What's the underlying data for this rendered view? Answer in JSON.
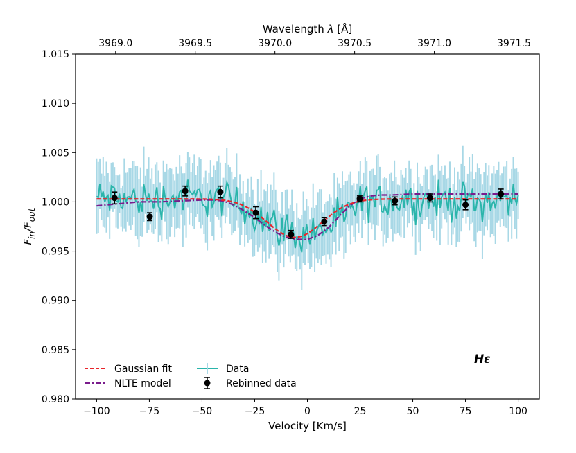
{
  "chart_data": {
    "type": "line",
    "xlabel": "Velocity [Km/s]",
    "ylabel_main": "F",
    "ylabel_sub_in": "in",
    "ylabel_sep": "/F",
    "ylabel_sub_out": "out",
    "top_xlabel_prefix": "Wavelength ",
    "top_xlabel_symbol": "λ",
    "top_xlabel_unit": " [Å]",
    "annotation": "Hε",
    "xlim": [
      -110,
      110
    ],
    "ylim": [
      0.98,
      1.015
    ],
    "x_ticks": [
      -100,
      -75,
      -50,
      -25,
      0,
      25,
      50,
      75,
      100
    ],
    "x_tick_labels": [
      "−100",
      "−75",
      "−50",
      "−25",
      "0",
      "25",
      "50",
      "75",
      "100"
    ],
    "y_ticks": [
      0.98,
      0.985,
      0.99,
      0.995,
      1.0,
      1.005,
      1.01,
      1.015
    ],
    "y_tick_labels": [
      "0.980",
      "0.985",
      "0.990",
      "0.995",
      "1.000",
      "1.005",
      "1.010",
      "1.015"
    ],
    "top_ticks_velocity": [
      -91.0,
      -53.2,
      -15.4,
      22.4,
      60.2,
      98.0
    ],
    "top_tick_labels": [
      "3969.0",
      "3969.5",
      "3970.0",
      "3970.5",
      "3971.0",
      "3971.5"
    ],
    "legend": {
      "location": "lower-left",
      "gaussian": "Gaussian fit",
      "nlte": "NLTE model",
      "data": "Data",
      "rebinned": "Rebinned data"
    },
    "colors": {
      "data_line": "#2ab5ab",
      "data_error": "#a8d8e6",
      "gaussian": "#e8242a",
      "nlte": "#7a1c8c",
      "rebinned": "#000000"
    },
    "rebinned": {
      "x": [
        -91.5,
        -74.8,
        -58.0,
        -41.3,
        -24.5,
        -7.8,
        8.0,
        24.8,
        41.5,
        58.2,
        75.0,
        91.8
      ],
      "y": [
        1.0004,
        0.9985,
        1.0011,
        1.001,
        0.9989,
        0.9967,
        0.998,
        1.0003,
        1.0001,
        1.0004,
        0.9997,
        1.0008
      ],
      "err": [
        0.0006,
        0.0004,
        0.0005,
        0.0006,
        0.0006,
        0.0004,
        0.0004,
        0.0003,
        0.0004,
        0.0004,
        0.0005,
        0.0005
      ]
    },
    "gaussian_fit": {
      "model": "offset - amp * exp(-(v-center)^2 / (2*sigma^2))",
      "offset": 1.0003,
      "amp": 0.0039,
      "center": -6,
      "sigma": 13,
      "x_range": [
        -100,
        100
      ]
    },
    "nlte_model": {
      "x": [
        -100,
        -90,
        -80,
        -70,
        -60,
        -50,
        -45,
        -40,
        -35,
        -30,
        -25,
        -20,
        -15,
        -10,
        -5,
        0,
        5,
        10,
        15,
        20,
        25,
        30,
        35,
        40,
        50,
        60,
        70,
        80,
        90,
        100
      ],
      "y": [
        0.9996,
        0.9998,
        1.0,
        1.0,
        1.0001,
        1.0002,
        1.0002,
        1.0001,
        0.9997,
        0.9991,
        0.9984,
        0.9976,
        0.9969,
        0.9964,
        0.9962,
        0.9962,
        0.9966,
        0.9974,
        0.9985,
        0.9996,
        1.0003,
        1.0006,
        1.0007,
        1.0007,
        1.0008,
        1.0008,
        1.0008,
        1.0008,
        1.0008,
        1.0008
      ]
    },
    "data_series": {
      "x_range": [
        -100,
        100
      ],
      "points": 260,
      "trend": [
        [
          -100,
          1.0004
        ],
        [
          -80,
          1.0002
        ],
        [
          -60,
          1.0004
        ],
        [
          -45,
          1.0004
        ],
        [
          -35,
          1.0
        ],
        [
          -25,
          0.9988
        ],
        [
          -15,
          0.9976
        ],
        [
          -5,
          0.9966
        ],
        [
          5,
          0.997
        ],
        [
          15,
          0.998
        ],
        [
          25,
          0.9998
        ],
        [
          40,
          1.0002
        ],
        [
          60,
          1.0001
        ],
        [
          80,
          1.0001
        ],
        [
          100,
          1.0002
        ]
      ],
      "noise_amplitude": 0.0028,
      "error_amplitude": 0.0032
    }
  }
}
